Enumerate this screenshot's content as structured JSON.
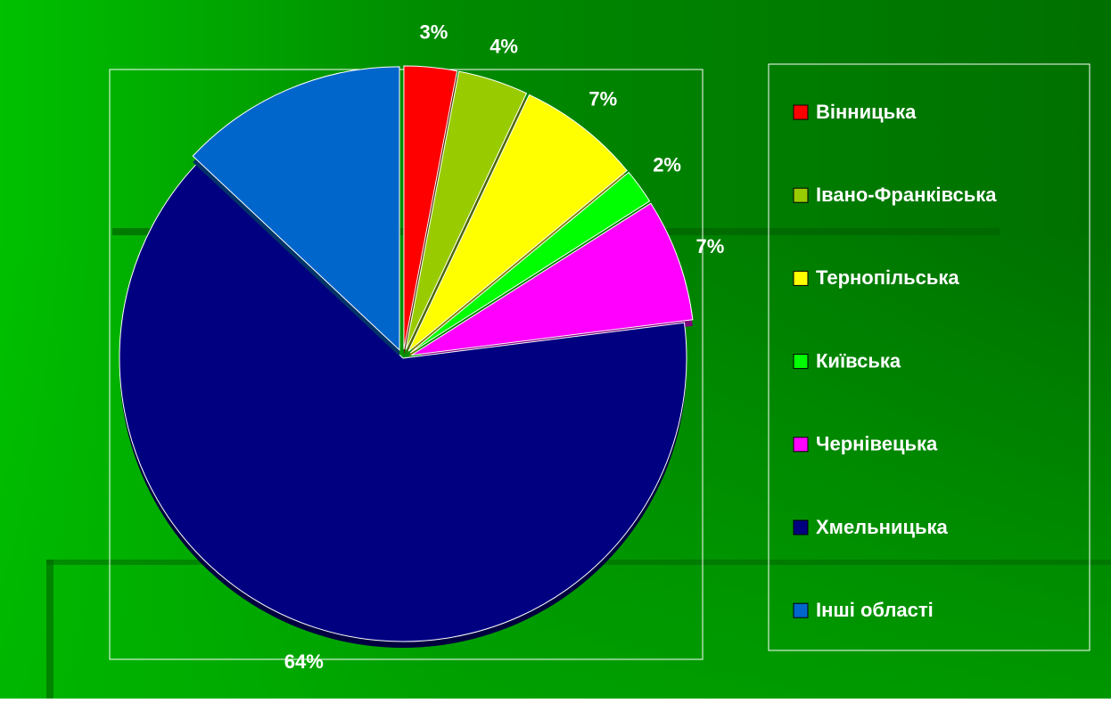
{
  "chart_data": {
    "type": "pie",
    "categories": [
      "Вінницька",
      "Івано-Франківська",
      "Тернопільська",
      "Київська",
      "Чернівецька",
      "Хмельницька",
      "Інші області"
    ],
    "values": [
      3,
      4,
      7,
      2,
      7,
      64,
      13
    ],
    "value_labels": [
      "3%",
      "4%",
      "7%",
      "2%",
      "7%",
      "64%",
      null
    ],
    "colors": [
      "#ff0000",
      "#99cc00",
      "#ffff00",
      "#00ff00",
      "#ff00ff",
      "#000080",
      "#0066cc"
    ],
    "legend": "right"
  }
}
